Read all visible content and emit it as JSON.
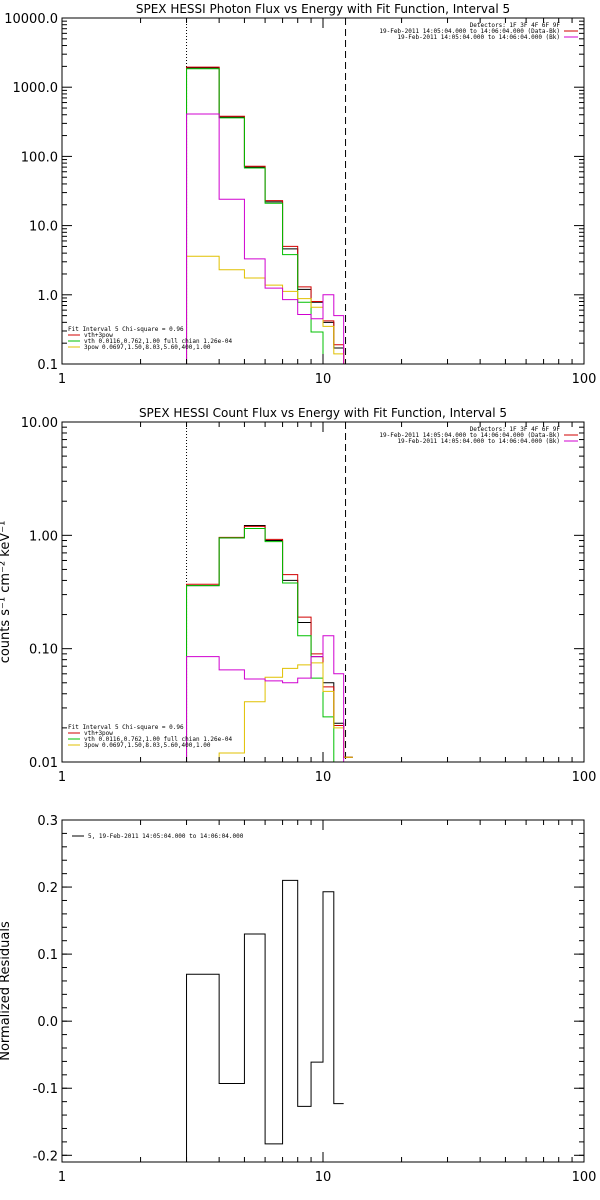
{
  "chart_data": [
    {
      "type": "line",
      "title": "SPEX HESSI Photon Flux vs Energy with Fit Function, Interval 5",
      "xscale": "log",
      "yscale": "log",
      "xlim": [
        1,
        100
      ],
      "ylim": [
        0.1,
        10000.0
      ],
      "xticks": [
        1,
        10,
        100
      ],
      "xtick_labels": [
        "1",
        "10",
        "100"
      ],
      "yticks": [
        0.1,
        1,
        10,
        100,
        1000,
        10000
      ],
      "ytick_labels": [
        "0.1",
        "1.0",
        "10.0",
        "100.0",
        "1000.0",
        "10000.0"
      ],
      "vlines": [
        {
          "x": 3,
          "style": "dotted"
        },
        {
          "x": 12.2,
          "style": "dashed"
        }
      ],
      "header_right": [
        "Detectors: 1F 3F 4F 6F 9F",
        "19-Feb-2011 14:05:04.000 to 14:06:04.000 (Data-Bk)",
        "19-Feb-2011 14:05:04.000 to 14:06:04.000 (Bk)"
      ],
      "header_colors": [
        "#000000",
        "#d00000",
        "#d000d0"
      ],
      "legend": [
        {
          "label": "Fit Interval 5   Chi-square = 0.96",
          "color": null
        },
        {
          "label": "vth+3pow",
          "color": "#d00000"
        },
        {
          "label": "vth 0.0116,0.762,1.00  full chian 1.26e-04",
          "color": "#00c000"
        },
        {
          "label": "3pow 0.0697,1.50,8.03,5.60,400,1.00",
          "color": "#e0c000"
        }
      ],
      "edges": [
        3.0,
        4.0,
        5.0,
        6.0,
        7.0,
        8.0,
        9.0,
        10.0,
        11.0,
        12.0,
        13.0
      ],
      "series": [
        {
          "name": "Data-Bk",
          "color": "#000000",
          "values": [
            1900,
            370,
            70,
            22,
            4.6,
            1.2,
            0.78,
            0.4,
            0.17,
            0.1
          ]
        },
        {
          "name": "vth+3pow",
          "color": "#d00000",
          "values": [
            1950,
            380,
            72,
            23,
            5.0,
            1.3,
            0.8,
            0.42,
            0.19,
            0.1
          ]
        },
        {
          "name": "vth",
          "color": "#00c000",
          "values": [
            1850,
            360,
            68,
            21,
            3.8,
            0.78,
            0.29,
            0.1,
            0.1,
            0.1
          ]
        },
        {
          "name": "3pow",
          "color": "#e0c000",
          "values": [
            3.6,
            2.3,
            1.75,
            1.38,
            1.12,
            0.88,
            0.66,
            0.35,
            0.14,
            0.1
          ]
        },
        {
          "name": "Bk",
          "color": "#d000d0",
          "values": [
            410,
            24,
            3.3,
            1.25,
            0.85,
            0.52,
            0.45,
            1.0,
            0.5,
            0.1
          ]
        }
      ]
    },
    {
      "type": "line",
      "title": "SPEX HESSI Count Flux vs Energy with Fit Function, Interval 5",
      "xscale": "log",
      "yscale": "log",
      "xlim": [
        1,
        100
      ],
      "ylim": [
        0.01,
        10.0
      ],
      "xticks": [
        1,
        10,
        100
      ],
      "xtick_labels": [
        "1",
        "10",
        "100"
      ],
      "yticks": [
        0.01,
        0.1,
        1,
        10
      ],
      "ytick_labels": [
        "0.01",
        "0.10",
        "1.00",
        "10.00"
      ],
      "ylabel": "counts s⁻¹ cm⁻² keV⁻¹",
      "vlines": [
        {
          "x": 3,
          "style": "dotted"
        },
        {
          "x": 12.2,
          "style": "dashed"
        }
      ],
      "header_right": [
        "Detectors: 1F 3F 4F 6F 9F",
        "19-Feb-2011 14:05:04.000 to 14:06:04.000 (Data-Bk)",
        "19-Feb-2011 14:05:04.000 to 14:06:04.000 (Bk)"
      ],
      "header_colors": [
        "#000000",
        "#d00000",
        "#d000d0"
      ],
      "legend": [
        {
          "label": "Fit Interval 5   Chi-square = 0.96",
          "color": null
        },
        {
          "label": "vth+3pow",
          "color": "#d00000"
        },
        {
          "label": "vth 0.0116,0.762,1.00  full chian 1.26e-04",
          "color": "#00c000"
        },
        {
          "label": "3pow 0.0697,1.50,8.03,5.60,400,1.00",
          "color": "#e0c000"
        }
      ],
      "edges": [
        3.0,
        4.0,
        5.0,
        6.0,
        7.0,
        8.0,
        9.0,
        10.0,
        11.0,
        12.0,
        13.0
      ],
      "series": [
        {
          "name": "Data-Bk",
          "color": "#000000",
          "values": [
            0.36,
            0.95,
            1.22,
            0.9,
            0.4,
            0.17,
            0.085,
            0.05,
            0.022,
            0.011
          ]
        },
        {
          "name": "vth+3pow",
          "color": "#d00000",
          "values": [
            0.37,
            0.96,
            1.2,
            0.92,
            0.45,
            0.19,
            0.09,
            0.046,
            0.021,
            0.011
          ]
        },
        {
          "name": "vth",
          "color": "#00c000",
          "values": [
            0.36,
            0.95,
            1.15,
            0.88,
            0.38,
            0.13,
            0.055,
            0.025,
            0.01,
            0.01
          ]
        },
        {
          "name": "3pow",
          "color": "#e0c000",
          "values": [
            0.008,
            0.012,
            0.034,
            0.056,
            0.067,
            0.072,
            0.075,
            0.042,
            0.02,
            0.011
          ]
        },
        {
          "name": "Bk",
          "color": "#d000d0",
          "values": [
            0.085,
            0.065,
            0.054,
            0.052,
            0.05,
            0.055,
            0.085,
            0.13,
            0.06,
            0.01
          ]
        }
      ]
    },
    {
      "type": "line",
      "xscale": "log",
      "yscale": "linear",
      "xlim": [
        1,
        100
      ],
      "ylim": [
        -0.21,
        0.3
      ],
      "xticks": [
        1,
        10,
        100
      ],
      "xtick_labels": [
        "1",
        "10",
        "100"
      ],
      "yticks": [
        -0.2,
        -0.1,
        0.0,
        0.1,
        0.2,
        0.3
      ],
      "ytick_labels": [
        "-0.2",
        "-0.1",
        "0.0",
        "0.1",
        "0.2",
        "0.3"
      ],
      "ylabel": "Normalized Residuals",
      "legend": [
        {
          "label": "5, 19-Feb-2011 14:05:04.000 to 14:06:04.000",
          "color": "#000000"
        }
      ],
      "edges": [
        3.0,
        4.0,
        5.0,
        6.0,
        7.0,
        8.0,
        9.0,
        10.0,
        11.0,
        12.0
      ],
      "series": [
        {
          "name": "residuals",
          "color": "#000000",
          "values": [
            0.07,
            -0.093,
            0.13,
            -0.183,
            0.21,
            -0.127,
            -0.061,
            0.193,
            -0.123
          ]
        }
      ]
    }
  ]
}
